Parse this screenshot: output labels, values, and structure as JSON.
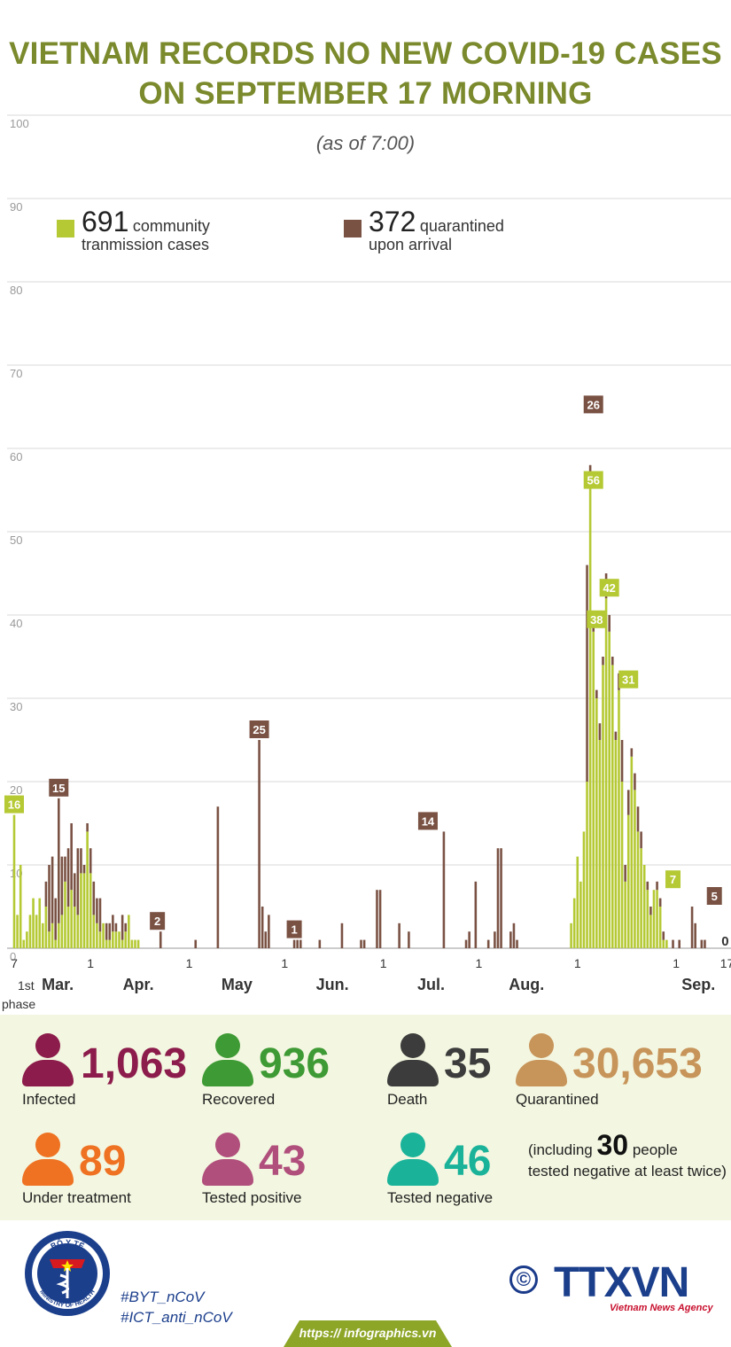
{
  "title_line1": "VIETNAM RECORDS NO NEW COVID-19 CASES",
  "title_line2": "ON SEPTEMBER 17 MORNING",
  "subtitle": "(as of 7:00)",
  "legend": {
    "community": {
      "count": "691",
      "label1": "community",
      "label2": "tranmission cases",
      "color": "#b5c934"
    },
    "arrival": {
      "count": "372",
      "label1": "quarantined",
      "label2": "upon arrival",
      "color": "#7a5244"
    }
  },
  "chart_data": {
    "type": "bar",
    "stacked": true,
    "ylim": [
      0,
      100
    ],
    "yticks": [
      0,
      10,
      20,
      30,
      40,
      50,
      60,
      70,
      80,
      90,
      100
    ],
    "grid": true,
    "x_tick_labels": [
      "7",
      "1",
      "1",
      "1",
      "1",
      "1",
      "1",
      "1",
      "17"
    ],
    "x_tick_day_index": [
      0,
      24,
      55,
      85,
      116,
      146,
      177,
      208,
      224
    ],
    "months": [
      "Mar.",
      "Apr.",
      "May",
      "Jun.",
      "Jul.",
      "Aug.",
      "Sep."
    ],
    "phase_label_1": "1st",
    "phase_label_2": "phase",
    "series": [
      {
        "name": "community tranmission cases",
        "color": "#b5c934",
        "values": [
          16,
          4,
          10,
          1,
          2,
          4,
          6,
          4,
          6,
          3,
          5,
          2,
          3,
          1,
          3,
          4,
          8,
          5,
          7,
          5,
          4,
          9,
          9,
          14,
          9,
          4,
          3,
          2,
          3,
          1,
          1,
          2,
          2,
          2,
          1,
          2,
          4,
          1,
          1,
          1,
          0,
          0,
          0,
          0,
          0,
          0,
          0,
          0,
          0,
          0,
          0,
          0,
          0,
          0,
          0,
          0,
          0,
          0,
          0,
          0,
          0,
          0,
          0,
          0,
          0,
          0,
          0,
          0,
          0,
          0,
          0,
          0,
          0,
          0,
          0,
          0,
          0,
          0,
          0,
          0,
          0,
          0,
          0,
          0,
          0,
          0,
          0,
          0,
          0,
          0,
          0,
          0,
          0,
          0,
          0,
          0,
          0,
          0,
          0,
          0,
          0,
          0,
          0,
          0,
          0,
          0,
          0,
          0,
          0,
          0,
          0,
          0,
          0,
          0,
          0,
          0,
          0,
          0,
          0,
          0,
          0,
          0,
          0,
          0,
          0,
          0,
          0,
          0,
          0,
          0,
          0,
          0,
          0,
          0,
          0,
          0,
          0,
          0,
          0,
          0,
          0,
          0,
          0,
          0,
          0,
          0,
          0,
          0,
          0,
          0,
          0,
          0,
          0,
          0,
          0,
          0,
          0,
          0,
          0,
          0,
          0,
          0,
          0,
          0,
          0,
          0,
          0,
          0,
          0,
          0,
          0,
          0,
          0,
          0,
          0,
          3,
          6,
          11,
          8,
          14,
          20,
          56,
          38,
          30,
          25,
          34,
          42,
          38,
          34,
          25,
          31,
          20,
          8,
          16,
          23,
          19,
          14,
          12,
          10,
          7,
          4,
          7,
          7,
          5,
          1,
          1,
          0,
          0,
          0,
          0,
          0,
          0,
          0,
          0,
          0,
          0,
          0,
          0,
          0,
          0,
          0,
          0,
          0,
          0
        ]
      },
      {
        "name": "quarantined upon arrival",
        "color": "#7a5244",
        "values": [
          0,
          0,
          0,
          0,
          0,
          0,
          0,
          0,
          0,
          0,
          3,
          8,
          8,
          5,
          15,
          7,
          3,
          7,
          8,
          4,
          8,
          3,
          1,
          1,
          3,
          4,
          3,
          4,
          0,
          2,
          2,
          2,
          1,
          0,
          3,
          1,
          0,
          0,
          0,
          0,
          0,
          0,
          0,
          0,
          0,
          0,
          2,
          0,
          0,
          0,
          0,
          0,
          0,
          0,
          0,
          0,
          0,
          1,
          0,
          0,
          0,
          0,
          0,
          0,
          17,
          0,
          0,
          0,
          0,
          0,
          0,
          0,
          0,
          0,
          0,
          0,
          0,
          25,
          5,
          2,
          4,
          0,
          0,
          0,
          0,
          0,
          0,
          0,
          1,
          1,
          1,
          0,
          0,
          0,
          0,
          0,
          1,
          0,
          0,
          0,
          0,
          0,
          0,
          3,
          0,
          0,
          0,
          0,
          0,
          1,
          1,
          0,
          0,
          0,
          7,
          7,
          0,
          0,
          0,
          0,
          0,
          3,
          0,
          0,
          2,
          0,
          0,
          0,
          0,
          0,
          0,
          0,
          0,
          0,
          0,
          14,
          0,
          0,
          0,
          0,
          0,
          0,
          1,
          2,
          0,
          8,
          0,
          0,
          0,
          1,
          0,
          2,
          12,
          12,
          0,
          0,
          2,
          3,
          1,
          0,
          0,
          0,
          0,
          0,
          0,
          0,
          0,
          0,
          0,
          0,
          0,
          0,
          0,
          0,
          0,
          0,
          0,
          0,
          0,
          0,
          26,
          2,
          2,
          1,
          2,
          1,
          3,
          2,
          1,
          1,
          2,
          5,
          2,
          3,
          1,
          2,
          3,
          2,
          0,
          1,
          1,
          0,
          1,
          1,
          1,
          0,
          0,
          1,
          0,
          1,
          0,
          0,
          0,
          5,
          3,
          0,
          1,
          1,
          0,
          0,
          0,
          0
        ]
      }
    ],
    "annotations": [
      {
        "day": 0,
        "value": 16,
        "text": "16",
        "series": "community"
      },
      {
        "day": 14,
        "value": 15,
        "text": "15",
        "series": "arrival"
      },
      {
        "day": 45,
        "value": 2,
        "text": "2",
        "series": "arrival"
      },
      {
        "day": 77,
        "value": 25,
        "text": "25",
        "series": "arrival"
      },
      {
        "day": 88,
        "value": 1,
        "text": "1",
        "series": "arrival"
      },
      {
        "day": 130,
        "value": 14,
        "text": "14",
        "series": "arrival"
      },
      {
        "day": 182,
        "value": 26,
        "text": "26",
        "series": "arrival"
      },
      {
        "day": 182,
        "value": 56,
        "text": "56",
        "series": "community"
      },
      {
        "day": 183,
        "value": 38,
        "text": "38",
        "series": "community"
      },
      {
        "day": 187,
        "value": 42,
        "text": "42",
        "series": "community"
      },
      {
        "day": 193,
        "value": 31,
        "text": "31",
        "series": "community"
      },
      {
        "day": 207,
        "value": 7,
        "text": "7",
        "series": "community"
      },
      {
        "day": 220,
        "value": 5,
        "text": "5",
        "series": "arrival"
      },
      {
        "day": 224,
        "value": 0,
        "text": "0",
        "series": "none"
      }
    ]
  },
  "stats": [
    {
      "key": "infected",
      "value": "1,063",
      "label": "Infected",
      "color": "#8c1c4b"
    },
    {
      "key": "recovered",
      "value": "936",
      "label": "Recovered",
      "color": "#3e9a34"
    },
    {
      "key": "death",
      "value": "35",
      "label": "Death",
      "color": "#3c3c3c"
    },
    {
      "key": "quarantined",
      "value": "30,653",
      "label": "Quarantined",
      "color": "#c7945a"
    },
    {
      "key": "under_treatment",
      "value": "89",
      "label": "Under treatment",
      "color": "#ee7222"
    },
    {
      "key": "tested_positive",
      "value": "43",
      "label": "Tested positive",
      "color": "#b04f7c"
    },
    {
      "key": "tested_negative",
      "value": "46",
      "label": "Tested negative",
      "color": "#1ab39a"
    }
  ],
  "note": {
    "pre": "(including ",
    "num": "30",
    "post": " people",
    "line2": "tested negative at least twice)"
  },
  "hashtags": [
    "#BYT_nCoV",
    "#ICT_anti_nCoV"
  ],
  "url": "https:// infographics.vn",
  "logo_moh_text": "BỘ Y TẾ · MINISTRY OF HEALTH",
  "logo_ttx": "TTXVN",
  "logo_ttx_sub": "Vietnam News Agency",
  "copyright_symbol": "©"
}
